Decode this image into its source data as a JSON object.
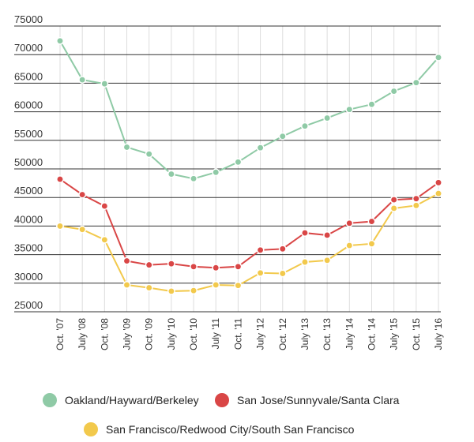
{
  "chart_data": {
    "type": "line",
    "title": "",
    "xlabel": "",
    "ylabel": "",
    "ylim": [
      25000,
      75000
    ],
    "yticks": [
      75000,
      70000,
      65000,
      60000,
      55000,
      50000,
      45000,
      40000,
      35000,
      30000,
      25000
    ],
    "grid": "horizontal",
    "legend_position": "bottom",
    "categories": [
      "Oct. '07",
      "July '08",
      "Oct. '08",
      "July '09",
      "Oct. '09",
      "July '10",
      "Oct. '10",
      "July '11",
      "Oct. '11",
      "July '12",
      "Oct. '12",
      "July '13",
      "Oct. '13",
      "July '14",
      "Oct. '14",
      "July '15",
      "Oct. '15",
      "July '16"
    ],
    "series": [
      {
        "name": "Oakland/Hayward/Berkeley",
        "color": "#8fcaa6",
        "values": [
          72400,
          65600,
          64900,
          53800,
          52600,
          49100,
          48300,
          49400,
          51200,
          53700,
          55700,
          57500,
          58900,
          60400,
          61300,
          63600,
          65100,
          69500
        ]
      },
      {
        "name": "San Jose/Sunnyvale/Santa Clara",
        "color": "#d94646",
        "values": [
          48200,
          45500,
          43500,
          33900,
          33200,
          33400,
          32900,
          32700,
          32900,
          35800,
          36000,
          38800,
          38400,
          40500,
          40800,
          44600,
          44800,
          47600
        ]
      },
      {
        "name": "San Francisco/Redwood City/South San Francisco",
        "color": "#f2c94c",
        "values": [
          40000,
          39400,
          37600,
          29700,
          29200,
          28600,
          28700,
          29700,
          29600,
          31800,
          31700,
          33700,
          34000,
          36600,
          36900,
          43100,
          43600,
          45700
        ]
      }
    ]
  }
}
